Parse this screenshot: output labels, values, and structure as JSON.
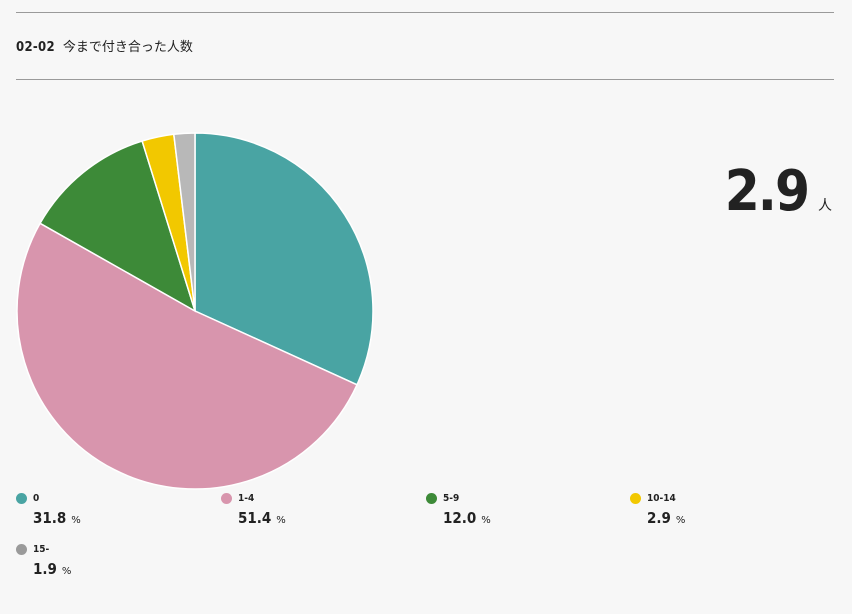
{
  "header": {
    "code": "02-02",
    "title": "今まで付き合った人数"
  },
  "average": {
    "value": "2.9",
    "unit": "人"
  },
  "chart_data": {
    "type": "pie",
    "categories": [
      "0",
      "1-4",
      "5-9",
      "10-14",
      "15-"
    ],
    "values": [
      31.8,
      51.4,
      12.0,
      2.9,
      1.9
    ],
    "value_labels": [
      "31.8",
      "51.4",
      "12.0",
      "2.9",
      "1.9"
    ],
    "colors": [
      "#49a4a3",
      "#d895ad",
      "#3d8a38",
      "#f2c800",
      "#b8b8b8"
    ],
    "legend_swatch_colors": [
      "#49a4a3",
      "#d895ad",
      "#3d8a38",
      "#f2c800",
      "#9a9a9a"
    ],
    "unit": "%",
    "start": "12 o'clock",
    "direction": "clockwise",
    "legend_position": "bottom"
  }
}
